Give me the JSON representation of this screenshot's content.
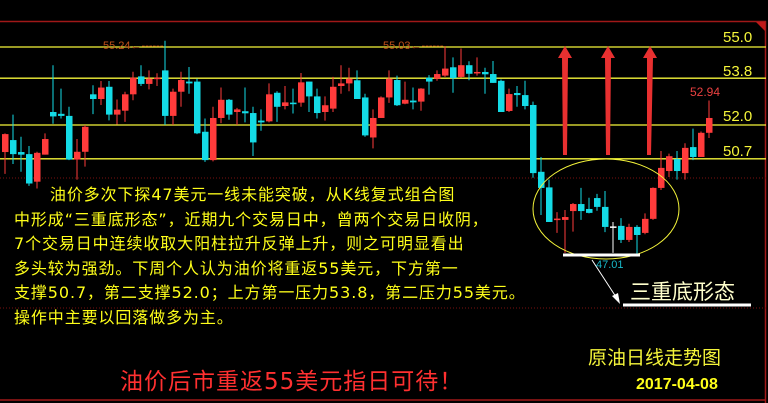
{
  "chart_data": {
    "type": "candlestick",
    "title": "原油日线走势图",
    "date": "2017-04-08",
    "colors": {
      "up": "#ff3b3b",
      "down": "#14dbe6",
      "flat": "#ffffff",
      "level_line": "#f5f53a",
      "ellipse": "#f5f53a"
    },
    "ylim": [
      46.6,
      55.3
    ],
    "level_lines": [
      {
        "value": 55.0,
        "label": "55.0"
      },
      {
        "value": 53.8,
        "label": "53.8"
      },
      {
        "value": 52.0,
        "label": "52.0"
      },
      {
        "value": 50.7,
        "label": "50.7"
      }
    ],
    "annotations": {
      "high_1": "55.24←------",
      "high_2": "55.03←------",
      "last_high": "52.94",
      "low": "47.01",
      "pattern_label": "三重底形态"
    },
    "ohlc_fields": [
      "open",
      "high",
      "low",
      "close"
    ],
    "candles": [
      [
        50.96,
        51.68,
        50.12,
        51.65
      ],
      [
        51.42,
        52.4,
        50.5,
        50.88
      ],
      [
        50.96,
        51.55,
        50.2,
        50.86
      ],
      [
        50.88,
        51.19,
        49.66,
        49.75
      ],
      [
        49.82,
        50.97,
        49.56,
        50.93
      ],
      [
        50.86,
        51.68,
        50.86,
        51.46
      ],
      [
        52.5,
        54.3,
        52.05,
        52.33
      ],
      [
        52.43,
        53.4,
        52.25,
        52.35
      ],
      [
        52.35,
        52.7,
        50.65,
        50.67
      ],
      [
        50.67,
        51.46,
        49.9,
        50.97
      ],
      [
        50.97,
        52.0,
        50.4,
        51.93
      ],
      [
        53.18,
        53.53,
        52.42,
        53.0
      ],
      [
        53.0,
        53.69,
        52.77,
        53.44
      ],
      [
        53.47,
        53.69,
        52.18,
        52.4
      ],
      [
        52.4,
        52.98,
        52.02,
        52.59
      ],
      [
        52.55,
        53.28,
        52.12,
        53.18
      ],
      [
        53.18,
        54.05,
        52.95,
        53.82
      ],
      [
        53.87,
        54.3,
        53.5,
        53.58
      ],
      [
        53.58,
        54.1,
        53.37,
        53.78
      ],
      [
        53.78,
        53.99,
        53.5,
        53.82
      ],
      [
        54.1,
        55.24,
        52.0,
        52.35
      ],
      [
        52.35,
        53.4,
        52.0,
        53.28
      ],
      [
        53.28,
        54.05,
        52.7,
        53.73
      ],
      [
        53.67,
        54.23,
        53.2,
        53.6
      ],
      [
        53.67,
        53.78,
        51.65,
        51.68
      ],
      [
        51.74,
        52.25,
        50.58,
        50.65
      ],
      [
        50.65,
        52.7,
        50.6,
        52.27
      ],
      [
        52.27,
        53.44,
        52.07,
        52.97
      ],
      [
        52.97,
        53.0,
        52.2,
        52.4
      ],
      [
        52.5,
        52.66,
        52.0,
        52.6
      ],
      [
        52.53,
        53.44,
        52.1,
        52.45
      ],
      [
        52.46,
        52.7,
        50.81,
        51.33
      ],
      [
        52.17,
        52.6,
        51.78,
        52.1
      ],
      [
        52.14,
        53.6,
        52.1,
        53.18
      ],
      [
        53.24,
        53.3,
        52.12,
        52.7
      ],
      [
        52.73,
        53.5,
        52.6,
        52.87
      ],
      [
        52.86,
        53.4,
        52.44,
        52.8
      ],
      [
        52.86,
        54.0,
        52.7,
        53.64
      ],
      [
        53.67,
        53.67,
        52.5,
        53.1
      ],
      [
        53.1,
        53.4,
        52.25,
        52.46
      ],
      [
        52.5,
        53.1,
        52.17,
        52.76
      ],
      [
        52.63,
        53.85,
        52.5,
        53.47
      ],
      [
        53.5,
        54.3,
        53.2,
        53.6
      ],
      [
        53.6,
        54.2,
        53.3,
        53.78
      ],
      [
        53.72,
        54.1,
        53.0,
        53.0
      ],
      [
        53.06,
        53.2,
        51.55,
        51.6
      ],
      [
        51.52,
        52.6,
        51.1,
        52.27
      ],
      [
        52.27,
        53.1,
        52.27,
        53.06
      ],
      [
        53.06,
        54.1,
        52.85,
        53.78
      ],
      [
        53.73,
        53.9,
        52.73,
        52.76
      ],
      [
        52.82,
        53.67,
        52.8,
        52.97
      ],
      [
        52.94,
        53.44,
        52.6,
        52.87
      ],
      [
        52.9,
        53.42,
        52.55,
        53.4
      ],
      [
        53.82,
        53.92,
        53.17,
        53.67
      ],
      [
        53.78,
        54.1,
        53.7,
        53.96
      ],
      [
        53.9,
        55.03,
        53.85,
        54.17
      ],
      [
        54.22,
        54.6,
        53.24,
        53.8
      ],
      [
        53.85,
        54.94,
        53.82,
        54.3
      ],
      [
        54.3,
        54.45,
        53.72,
        53.97
      ],
      [
        54.0,
        54.6,
        53.9,
        54.04
      ],
      [
        54.04,
        54.2,
        53.2,
        53.95
      ],
      [
        53.96,
        54.46,
        53.62,
        53.62
      ],
      [
        53.7,
        53.75,
        52.5,
        52.5
      ],
      [
        52.54,
        53.4,
        52.5,
        53.19
      ],
      [
        53.23,
        53.5,
        52.7,
        53.15
      ],
      [
        53.15,
        53.7,
        52.6,
        52.73
      ],
      [
        52.77,
        52.9,
        49.97,
        50.15
      ],
      [
        50.2,
        50.77,
        48.54,
        49.58
      ],
      [
        49.6,
        49.9,
        48.27,
        48.27
      ],
      [
        48.38,
        48.65,
        47.85,
        48.4
      ],
      [
        48.35,
        48.73,
        47.08,
        48.46
      ],
      [
        48.69,
        49.0,
        47.9,
        48.96
      ],
      [
        48.96,
        49.58,
        48.35,
        48.69
      ],
      [
        48.77,
        49.2,
        48.6,
        48.62
      ],
      [
        49.19,
        49.35,
        48.7,
        48.85
      ],
      [
        48.85,
        49.46,
        47.88,
        48.08
      ],
      [
        48.1,
        48.27,
        47.08,
        48.1
      ],
      [
        48.12,
        48.42,
        47.46,
        47.58
      ],
      [
        47.58,
        48.2,
        47.5,
        48.08
      ],
      [
        48.08,
        48.15,
        47.01,
        47.77
      ],
      [
        47.85,
        48.6,
        47.8,
        48.39
      ],
      [
        48.39,
        49.6,
        48.35,
        49.58
      ],
      [
        49.58,
        51.0,
        49.5,
        50.35
      ],
      [
        50.23,
        50.9,
        50.0,
        50.8
      ],
      [
        50.69,
        51.0,
        49.9,
        50.23
      ],
      [
        50.15,
        51.3,
        49.9,
        51.12
      ],
      [
        51.15,
        51.86,
        50.65,
        50.77
      ],
      [
        50.77,
        51.75,
        50.77,
        51.7
      ],
      [
        51.7,
        52.94,
        51.5,
        52.27
      ]
    ]
  },
  "commentary": {
    "lines": [
      "      油价多次下探47美元一线未能突破，从K线复式组合图",
      "中形成“三重底形态”，近期九个交易日中，曾两个交易日收阴，",
      "7个交易日中连续收取大阳柱拉升反弹上升，则之可明显看出",
      "多头较为强劲。下周个人认为油价将重返55美元，下方第一",
      "支撑50.7，第二支撑52.0；上方第一压力53.8，第二压力55美元。",
      "操作中主要以回落做多为主。"
    ],
    "headline": "油价后市重返55美元指日可待！"
  }
}
